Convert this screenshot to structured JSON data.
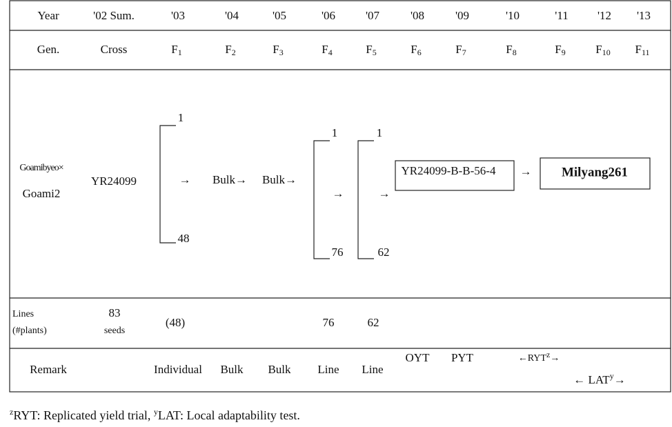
{
  "header": {
    "cells": [
      "Year",
      "'02 Sum.",
      "'03",
      "'04",
      "'05",
      "'06",
      "'07",
      "'08",
      "'09",
      "'10",
      "'11",
      "'12",
      "'13"
    ]
  },
  "generation": {
    "label": "Gen.",
    "cross": "Cross",
    "cells": [
      {
        "letter": "F",
        "sub": "1"
      },
      {
        "letter": "F",
        "sub": "2"
      },
      {
        "letter": "F",
        "sub": "3"
      },
      {
        "letter": "F",
        "sub": "4"
      },
      {
        "letter": "F",
        "sub": "5"
      },
      {
        "letter": "F",
        "sub": "6"
      },
      {
        "letter": "F",
        "sub": "7"
      },
      {
        "letter": "F",
        "sub": "8"
      },
      {
        "letter": "F",
        "sub": "9"
      },
      {
        "letter": "F",
        "sub": "10"
      },
      {
        "letter": "F",
        "sub": "11"
      }
    ]
  },
  "pedigree": {
    "parent1": "Goamibyeo×",
    "parent2": "Goami2",
    "cross": "YR24099",
    "f1": {
      "top": "1",
      "bottom": "48",
      "arrow": "→"
    },
    "f2": "Bulk→",
    "f3": "Bulk→",
    "f4": {
      "top": "1",
      "bottom": "76",
      "arrow": "→"
    },
    "f5": {
      "top": "1",
      "bottom": "62",
      "arrow": "→"
    },
    "line": "YR24099-B-B-56-4",
    "arrow": "→",
    "cultivar": "Milyang261"
  },
  "lines": {
    "label": [
      "Lines",
      "(#plants)"
    ],
    "seeds": [
      "83",
      "seeds"
    ],
    "f1": "(48)",
    "f4": "76",
    "f5": "62"
  },
  "remark": {
    "label": "Remark",
    "cells": [
      "Individual",
      "Bulk",
      "Bulk",
      "Line",
      "Line",
      "OYT",
      "PYT"
    ],
    "ryt": {
      "text": "←RYT",
      "sup": "z",
      "end": "→"
    },
    "lat": {
      "text": "← LAT",
      "sup": "y",
      "end": "→"
    }
  },
  "footnote": [
    {
      "sup": "z",
      "text": "RYT: Replicated yield trial, "
    },
    {
      "sup": "y",
      "text": "LAT: Local adaptability test."
    }
  ]
}
